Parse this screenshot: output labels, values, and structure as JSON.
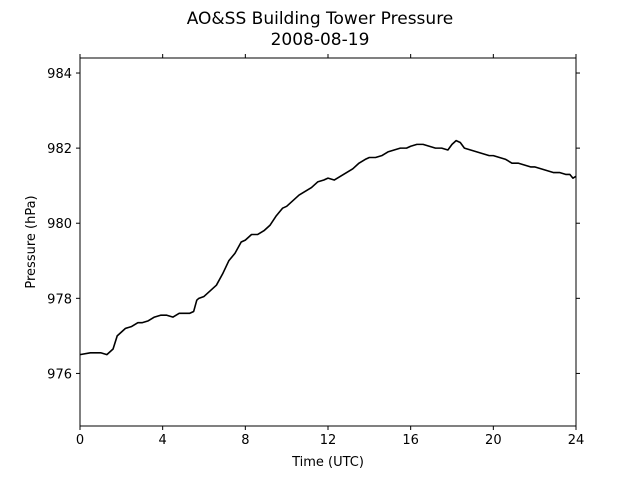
{
  "chart_data": {
    "type": "line",
    "title": "AO&SS Building Tower Pressure",
    "subtitle": "2008-08-19",
    "xlabel": "Time (UTC)",
    "ylabel": "Pressure (hPa)",
    "xlim": [
      0,
      24
    ],
    "ylim": [
      974.6,
      984.4
    ],
    "xticks": [
      0,
      4,
      8,
      12,
      16,
      20,
      24
    ],
    "xtick_labels": [
      "0",
      "4",
      "8",
      "12",
      "16",
      "20",
      "24"
    ],
    "yticks": [
      976,
      978,
      980,
      982,
      984
    ],
    "ytick_labels": [
      "976",
      "978",
      "980",
      "982",
      "984"
    ],
    "grid": false,
    "line_color": "#000000",
    "series": [
      {
        "x": [
          0,
          0.5,
          1.0,
          1.3,
          1.6,
          1.8,
          2.0,
          2.2,
          2.5,
          2.8,
          3.0,
          3.3,
          3.6,
          3.9,
          4.0,
          4.2,
          4.5,
          4.8,
          5.0,
          5.3,
          5.5,
          5.65,
          5.75,
          6.0,
          6.3,
          6.6,
          6.9,
          7.2,
          7.5,
          7.8,
          8.0,
          8.3,
          8.6,
          8.9,
          9.2,
          9.5,
          9.8,
          10.0,
          10.3,
          10.6,
          10.9,
          11.2,
          11.5,
          11.8,
          12.0,
          12.3,
          12.6,
          12.9,
          13.2,
          13.5,
          13.8,
          14.0,
          14.3,
          14.6,
          14.9,
          15.2,
          15.5,
          15.8,
          16.0,
          16.3,
          16.6,
          16.9,
          17.2,
          17.5,
          17.8,
          18.0,
          18.2,
          18.4,
          18.6,
          18.9,
          19.2,
          19.5,
          19.8,
          20.0,
          20.3,
          20.6,
          20.9,
          21.2,
          21.5,
          21.8,
          22.0,
          22.3,
          22.6,
          22.9,
          23.2,
          23.5,
          23.7,
          23.85,
          24.0
        ],
        "y": [
          976.5,
          976.55,
          976.55,
          976.5,
          976.65,
          977.0,
          977.1,
          977.2,
          977.25,
          977.35,
          977.35,
          977.4,
          977.5,
          977.55,
          977.55,
          977.55,
          977.5,
          977.6,
          977.6,
          977.6,
          977.65,
          977.95,
          978.0,
          978.05,
          978.2,
          978.35,
          978.65,
          979.0,
          979.2,
          979.5,
          979.55,
          979.7,
          979.7,
          979.8,
          979.95,
          980.2,
          980.4,
          980.45,
          980.6,
          980.75,
          980.85,
          980.95,
          981.1,
          981.15,
          981.2,
          981.15,
          981.25,
          981.35,
          981.45,
          981.6,
          981.7,
          981.75,
          981.75,
          981.8,
          981.9,
          981.95,
          982.0,
          982.0,
          982.05,
          982.1,
          982.1,
          982.05,
          982.0,
          982.0,
          981.95,
          982.1,
          982.2,
          982.15,
          982.0,
          981.95,
          981.9,
          981.85,
          981.8,
          981.8,
          981.75,
          981.7,
          981.6,
          981.6,
          981.55,
          981.5,
          981.5,
          981.45,
          981.4,
          981.35,
          981.35,
          981.3,
          981.3,
          981.2,
          981.25
        ]
      }
    ]
  }
}
